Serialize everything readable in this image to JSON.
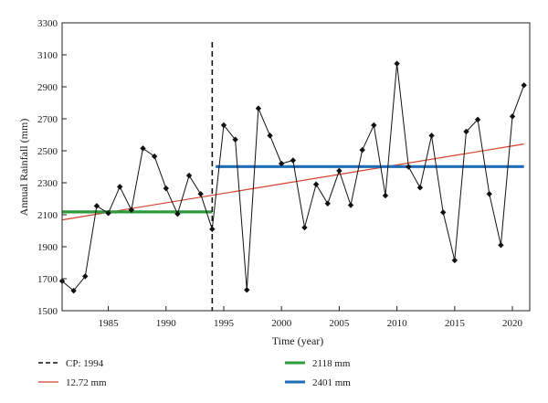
{
  "chart_data": {
    "type": "line",
    "xlabel": "Time (year)",
    "ylabel": "Annual Rainfall (mm)",
    "xlim": [
      1981,
      2021.5
    ],
    "ylim": [
      1500,
      3300
    ],
    "xticks": [
      1985,
      1990,
      1995,
      2000,
      2005,
      2010,
      2015,
      2020
    ],
    "yticks": [
      1500,
      1700,
      1900,
      2100,
      2300,
      2500,
      2700,
      2900,
      3100,
      3300
    ],
    "grid": false,
    "legend_position": "bottom",
    "series": [
      {
        "kind": "observed",
        "color": "#111111",
        "marker": "diamond",
        "x": [
          1981,
          1982,
          1983,
          1984,
          1985,
          1986,
          1987,
          1988,
          1989,
          1990,
          1991,
          1992,
          1993,
          1994,
          1995,
          1996,
          1997,
          1998,
          1999,
          2000,
          2001,
          2002,
          2003,
          2004,
          2005,
          2006,
          2007,
          2008,
          2009,
          2010,
          2011,
          2012,
          2013,
          2014,
          2015,
          2016,
          2017,
          2018,
          2019,
          2020,
          2021
        ],
        "y": [
          1685,
          1625,
          1715,
          2155,
          2110,
          2275,
          2130,
          2515,
          2465,
          2265,
          2105,
          2345,
          2230,
          2010,
          2660,
          2570,
          1630,
          2765,
          2595,
          2420,
          2440,
          2020,
          2290,
          2170,
          2375,
          2160,
          2505,
          2660,
          2220,
          3045,
          2400,
          2270,
          2595,
          2115,
          1815,
          2620,
          2695,
          2230,
          1910,
          2715,
          2910
        ]
      },
      {
        "name": "12.72 mm",
        "kind": "trend",
        "color": "#d4422a",
        "x": [
          1981,
          2021
        ],
        "y": [
          2068,
          2542
        ]
      },
      {
        "name": "2118 mm",
        "kind": "mean-before",
        "color": "#2f9a3c",
        "x": [
          1981,
          1994
        ],
        "y": [
          2118,
          2118
        ]
      },
      {
        "name": "2401 mm",
        "kind": "mean-after",
        "color": "#1f6db5",
        "x": [
          1994.3,
          2021
        ],
        "y": [
          2401,
          2401
        ]
      }
    ],
    "change_point": {
      "label": "CP: 1994",
      "x": 1994,
      "color": "#111111"
    },
    "legend": [
      {
        "label": "CP: 1994",
        "style": "dashed",
        "color": "#111111"
      },
      {
        "label": "2118 mm",
        "style": "solid-thick",
        "color": "#2f9a3c"
      },
      {
        "label": "12.72 mm",
        "style": "solid-thin",
        "color": "#d4422a"
      },
      {
        "label": "2401 mm",
        "style": "solid-thick",
        "color": "#1f6db5"
      }
    ]
  }
}
